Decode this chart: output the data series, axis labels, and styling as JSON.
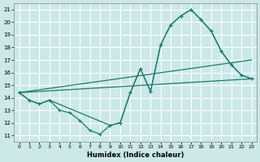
{
  "xlabel": "Humidex (Indice chaleur)",
  "xlim": [
    -0.5,
    23.5
  ],
  "ylim": [
    10.5,
    21.5
  ],
  "xticks": [
    0,
    1,
    2,
    3,
    4,
    5,
    6,
    7,
    8,
    9,
    10,
    11,
    12,
    13,
    14,
    15,
    16,
    17,
    18,
    19,
    20,
    21,
    22,
    23
  ],
  "yticks": [
    11,
    12,
    13,
    14,
    15,
    16,
    17,
    18,
    19,
    20,
    21
  ],
  "bg_color": "#cce8e8",
  "grid_color": "#ffffff",
  "line_color": "#1a7a6e",
  "lines": [
    {
      "x": [
        0,
        1,
        2,
        3,
        4,
        5,
        6,
        7,
        8,
        9,
        10,
        11,
        12,
        13,
        14,
        15,
        16,
        17,
        18,
        19,
        20,
        21,
        22,
        23
      ],
      "y": [
        14.4,
        13.8,
        13.5,
        13.8,
        13.0,
        12.8,
        12.2,
        11.4,
        11.1,
        11.8,
        12.0,
        14.4,
        16.3,
        14.5,
        18.2,
        19.8,
        20.5,
        21.0,
        20.2,
        19.3,
        17.7,
        16.6,
        15.8,
        15.5
      ],
      "marker": true,
      "lw": 0.9
    },
    {
      "x": [
        0,
        1,
        2,
        3,
        9,
        10,
        11,
        12,
        13,
        14,
        15,
        16,
        17,
        18,
        19,
        20,
        21,
        22,
        23
      ],
      "y": [
        14.4,
        13.8,
        13.5,
        13.8,
        11.8,
        12.0,
        14.4,
        16.3,
        14.5,
        18.2,
        19.8,
        20.5,
        21.0,
        20.2,
        19.3,
        17.7,
        16.6,
        15.8,
        15.5
      ],
      "marker": true,
      "lw": 0.9
    },
    {
      "x": [
        0,
        23
      ],
      "y": [
        14.4,
        17.0
      ],
      "marker": false,
      "lw": 0.9
    },
    {
      "x": [
        0,
        23
      ],
      "y": [
        14.4,
        15.5
      ],
      "marker": false,
      "lw": 0.9
    }
  ]
}
